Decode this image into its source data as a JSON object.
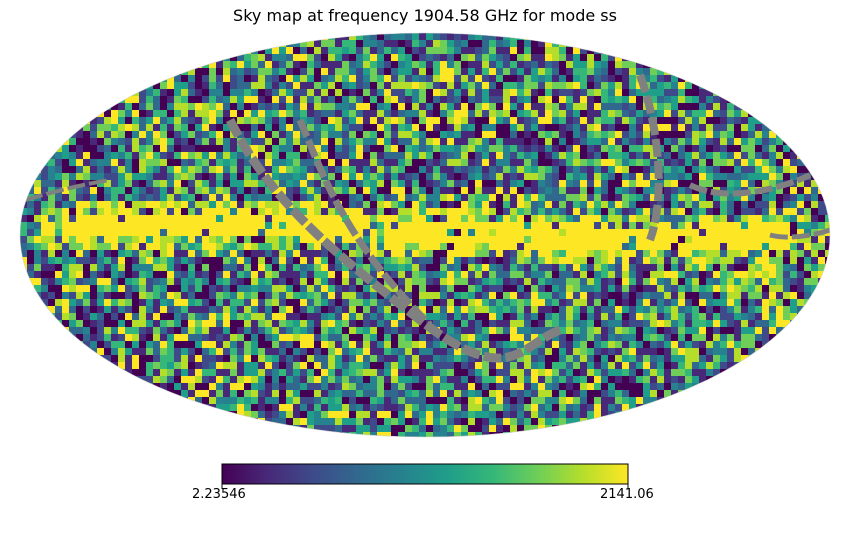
{
  "chart_data": {
    "type": "heatmap",
    "projection": "mollweide",
    "title": "Sky map at frequency 1904.58 GHz for mode ss",
    "colormap": "viridis",
    "colorbar": {
      "min_label": "2.23546",
      "max_label": "2141.06",
      "min": 2.23546,
      "max": 2141.06,
      "orientation": "horizontal",
      "placement": "bottom"
    },
    "masked_color": "#808080",
    "features": [
      {
        "name": "galactic plane band",
        "value": "high (saturated yellow)"
      },
      {
        "name": "scan-strategy gaps",
        "value": "masked (grey)"
      }
    ]
  },
  "colors": {
    "viridis": [
      "#440154",
      "#482878",
      "#3e4a89",
      "#31688e",
      "#26828e",
      "#1f9e89",
      "#35b779",
      "#6ece58",
      "#b5de2b",
      "#fde725"
    ],
    "mask": "#808080"
  }
}
